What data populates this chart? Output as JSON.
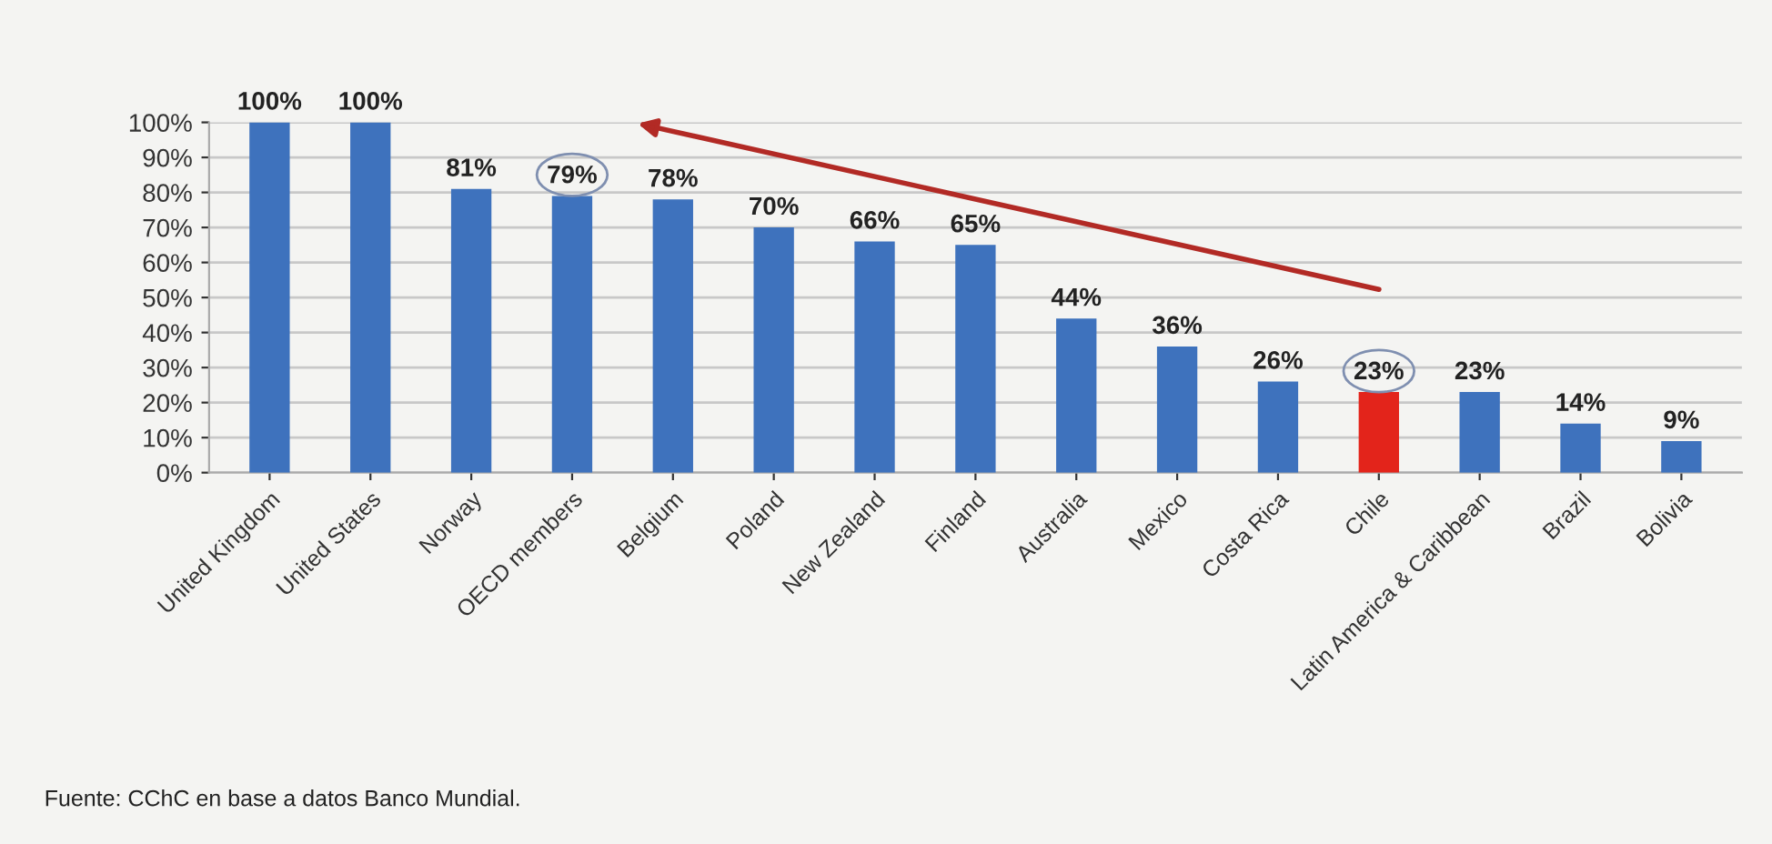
{
  "chart_data": {
    "type": "bar",
    "categories": [
      "United Kingdom",
      "United States",
      "Norway",
      "OECD members",
      "Belgium",
      "Poland",
      "New Zealand",
      "Finland",
      "Australia",
      "Mexico",
      "Costa Rica",
      "Chile",
      "Latin America & Caribbean",
      "Brazil",
      "Bolivia"
    ],
    "values": [
      100,
      100,
      81,
      79,
      78,
      70,
      66,
      65,
      44,
      36,
      26,
      23,
      23,
      14,
      9
    ],
    "value_labels": [
      "100%",
      "100%",
      "81%",
      "79%",
      "78%",
      "70%",
      "66%",
      "65%",
      "44%",
      "36%",
      "26%",
      "23%",
      "23%",
      "14%",
      "9%"
    ],
    "colors": [
      "#3e72bd",
      "#3e72bd",
      "#3e72bd",
      "#3e72bd",
      "#3e72bd",
      "#3e72bd",
      "#3e72bd",
      "#3e72bd",
      "#3e72bd",
      "#3e72bd",
      "#3e72bd",
      "#e3241b",
      "#3e72bd",
      "#3e72bd",
      "#3e72bd"
    ],
    "ylim": [
      0,
      100
    ],
    "yticks": [
      {
        "value": 0,
        "label": "0%"
      },
      {
        "value": 10,
        "label": "10%"
      },
      {
        "value": 20,
        "label": "20%"
      },
      {
        "value": 30,
        "label": "30%"
      },
      {
        "value": 40,
        "label": "40%"
      },
      {
        "value": 50,
        "label": "50%"
      },
      {
        "value": 60,
        "label": "60%"
      },
      {
        "value": 70,
        "label": "70%"
      },
      {
        "value": 80,
        "label": "80%"
      },
      {
        "value": 90,
        "label": "90%"
      },
      {
        "value": 100,
        "label": "100%"
      }
    ],
    "grid": "y",
    "annotations": [
      "Fuente: CChC en base a datos Banco Mundial."
    ]
  }
}
